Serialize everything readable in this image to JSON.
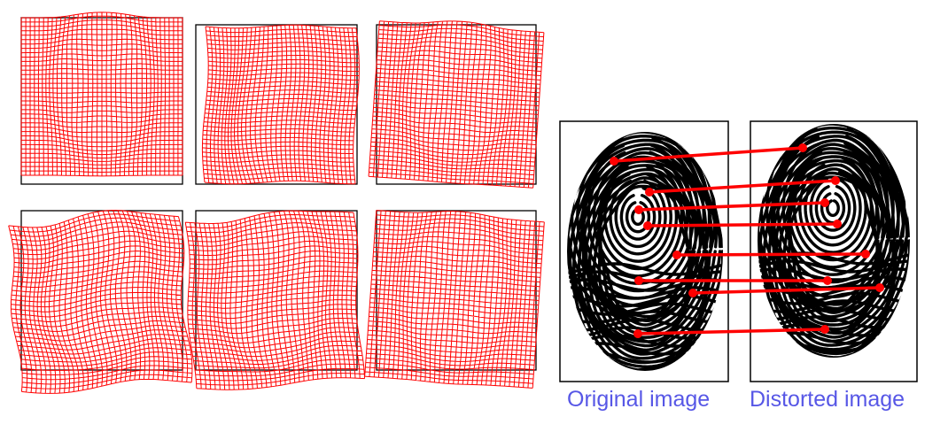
{
  "captions": {
    "original": "Original image",
    "distorted": "Distorted image"
  },
  "colors": {
    "grid": "#ff0000",
    "frame": "#000000",
    "caption": "#5757e6",
    "ridge": "#000000",
    "correspondence": "#ff0000"
  },
  "panels": [
    {
      "name": "distortion-field-1",
      "rotation_deg": 0,
      "style": "vertical-ellipse-pinch"
    },
    {
      "name": "distortion-field-2",
      "rotation_deg": 0,
      "style": "left-arc-curve"
    },
    {
      "name": "distortion-field-3",
      "rotation_deg": 4,
      "style": "oval-pinch"
    },
    {
      "name": "distortion-field-4",
      "rotation_deg": -4,
      "style": "wavy-rotated"
    },
    {
      "name": "distortion-field-5",
      "rotation_deg": -3,
      "style": "oval-pinch-rotated"
    },
    {
      "name": "distortion-field-6",
      "rotation_deg": 4,
      "style": "arch-pinch"
    }
  ],
  "correspondences_count_shown": 8
}
